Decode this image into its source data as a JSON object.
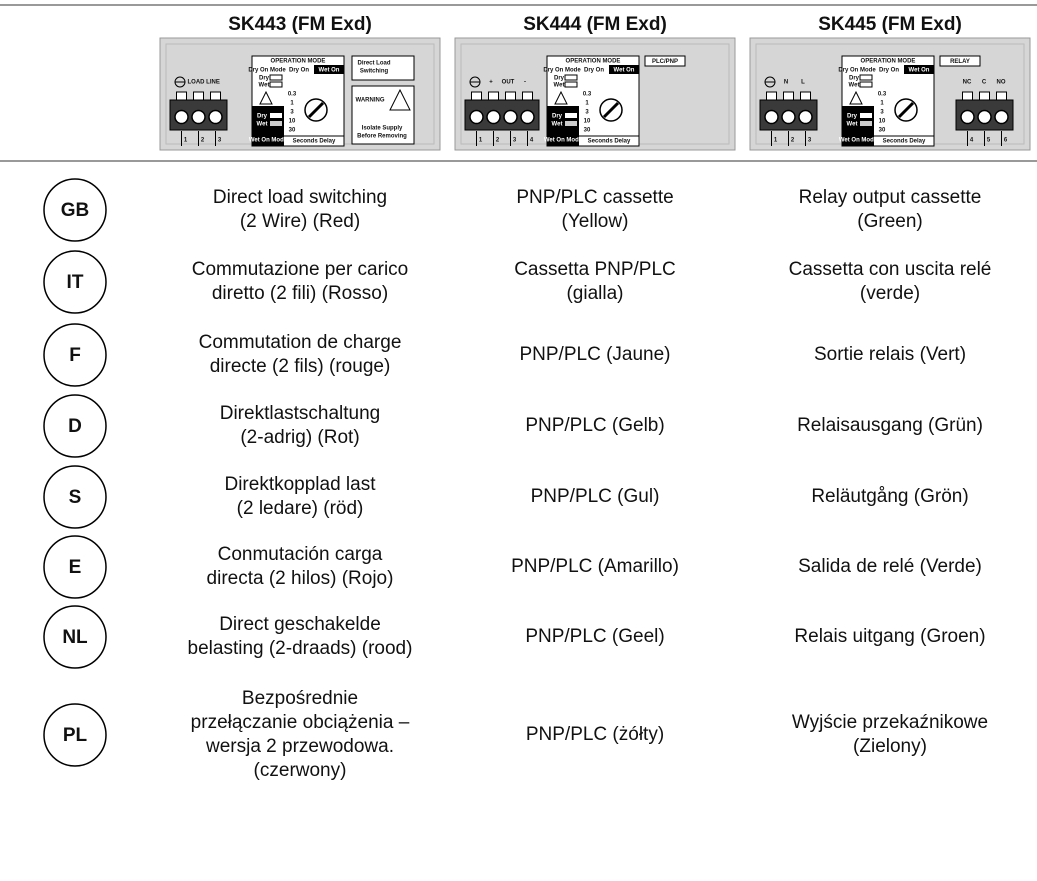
{
  "table": {
    "columns": [
      {
        "title": "SK443 (FM Exd)",
        "device": {
          "labels": [
            "LOAD",
            "LINE"
          ],
          "terminals": [
            "1",
            "2",
            "3"
          ],
          "mode": {
            "header": "OPERATION MODE",
            "dry_on_mode": "Dry On Mode",
            "dry_on": "Dry On",
            "wet_on": "Wet On",
            "dry": "Dry",
            "wet": "Wet",
            "wet_on_mode": "Wet On Mode",
            "delay": "Seconds Delay",
            "scale": [
              "0.3",
              "1",
              "3",
              "10",
              "30"
            ]
          },
          "side_box": [
            "Direct Load",
            "Switching"
          ],
          "warning": "WARNING",
          "warning_note": [
            "Isolate Supply",
            "Before Removing"
          ]
        }
      },
      {
        "title": "SK444 (FM Exd)",
        "device": {
          "labels": [
            "+",
            "OUT",
            "-"
          ],
          "terminals": [
            "1",
            "2",
            "3",
            "4"
          ],
          "mode": {
            "header": "OPERATION MODE",
            "dry_on_mode": "Dry On Mode",
            "dry_on": "Dry On",
            "wet_on": "Wet On",
            "dry": "Dry",
            "wet": "Wet",
            "wet_on_mode": "Wet On Mode",
            "delay": "Seconds Delay",
            "scale": [
              "0.3",
              "1",
              "3",
              "10",
              "30"
            ]
          },
          "tag": "PLC/PNP"
        }
      },
      {
        "title": "SK445 (FM Exd)",
        "device": {
          "labels": [
            "N",
            "L"
          ],
          "terminals": [
            "1",
            "2",
            "3"
          ],
          "mode": {
            "header": "OPERATION MODE",
            "dry_on_mode": "Dry On Mode",
            "dry_on": "Dry On",
            "wet_on": "Wet On",
            "dry": "Dry",
            "wet": "Wet",
            "wet_on_mode": "Wet On Mode",
            "delay": "Seconds Delay",
            "scale": [
              "0.3",
              "1",
              "3",
              "10",
              "30"
            ]
          },
          "tag": "RELAY",
          "right_labels": [
            "NC",
            "C",
            "NO"
          ],
          "right_terminals": [
            "4",
            "5",
            "6"
          ]
        }
      }
    ],
    "rows": [
      {
        "code": "GB",
        "cells": [
          [
            "Direct load switching",
            "(2 Wire) (Red)"
          ],
          [
            "PNP/PLC cassette",
            "(Yellow)"
          ],
          [
            "Relay output cassette",
            "(Green)"
          ]
        ]
      },
      {
        "code": "IT",
        "cells": [
          [
            "Commutazione per carico",
            "diretto (2 fili) (Rosso)"
          ],
          [
            "Cassetta PNP/PLC",
            "(gialla)"
          ],
          [
            "Cassetta con uscita relé",
            "(verde)"
          ]
        ]
      },
      {
        "code": "F",
        "cells": [
          [
            "Commutation de charge",
            "directe (2 fils) (rouge)"
          ],
          [
            "PNP/PLC (Jaune)"
          ],
          [
            "Sortie relais (Vert)"
          ]
        ]
      },
      {
        "code": "D",
        "cells": [
          [
            "Direktlastschaltung",
            "(2-adrig) (Rot)"
          ],
          [
            "PNP/PLC (Gelb)"
          ],
          [
            "Relaisausgang (Grün)"
          ]
        ]
      },
      {
        "code": "S",
        "cells": [
          [
            "Direktkopplad last",
            "(2 ledare) (röd)"
          ],
          [
            "PNP/PLC (Gul)"
          ],
          [
            "Reläutgång (Grön)"
          ]
        ]
      },
      {
        "code": "E",
        "cells": [
          [
            "Conmutación carga",
            "directa (2 hilos) (Rojo)"
          ],
          [
            "PNP/PLC (Amarillo)"
          ],
          [
            "Salida de relé (Verde)"
          ]
        ]
      },
      {
        "code": "NL",
        "cells": [
          [
            "Direct geschakelde",
            "belasting (2-draads) (rood)"
          ],
          [
            "PNP/PLC (Geel)"
          ],
          [
            "Relais uitgang (Groen)"
          ]
        ]
      },
      {
        "code": "PL",
        "cells": [
          [
            "Bezpośrednie",
            "przełączanie obciążenia –",
            "wersja 2 przewodowa.",
            "(czerwony)"
          ],
          [
            "PNP/PLC (żółty)"
          ],
          [
            "Wyjście przekaźnikowe",
            "(Zielony)"
          ]
        ]
      }
    ]
  }
}
